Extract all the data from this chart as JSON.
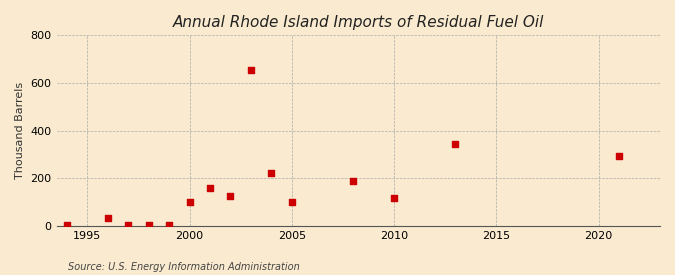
{
  "title": "Annual Rhode Island Imports of Residual Fuel Oil",
  "ylabel": "Thousand Barrels",
  "source": "Source: U.S. Energy Information Administration",
  "background_color": "#faebd0",
  "plot_bg_color": "#faebd0",
  "marker_color": "#cc0000",
  "years": [
    1994,
    1996,
    1997,
    1998,
    1999,
    2000,
    2001,
    2002,
    2003,
    2004,
    2005,
    2008,
    2010,
    2013,
    2021
  ],
  "values": [
    2,
    32,
    3,
    3,
    3,
    100,
    160,
    125,
    655,
    220,
    100,
    190,
    115,
    345,
    295
  ],
  "xlim": [
    1993.5,
    2023
  ],
  "ylim": [
    0,
    800
  ],
  "yticks": [
    0,
    200,
    400,
    600,
    800
  ],
  "xticks": [
    1995,
    2000,
    2005,
    2010,
    2015,
    2020
  ],
  "title_fontsize": 11,
  "label_fontsize": 8,
  "tick_fontsize": 8,
  "source_fontsize": 7,
  "marker_size": 14
}
